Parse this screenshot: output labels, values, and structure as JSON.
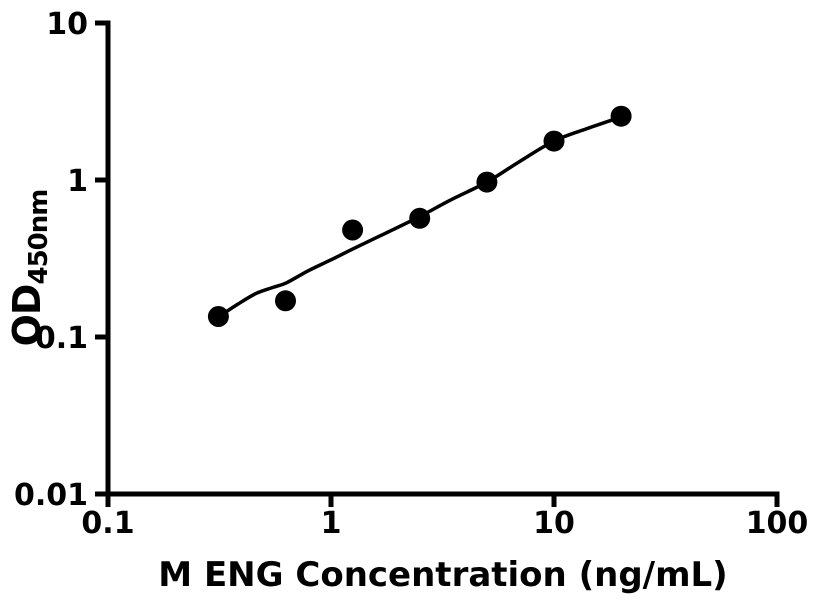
{
  "style": {
    "background": "#ffffff",
    "ink": "#000000"
  },
  "chart_data": {
    "type": "scatter",
    "title": "",
    "xlabel": "M ENG Concentration (ng/mL)",
    "ylabel_main": "OD",
    "ylabel_sub": "450nm",
    "x_scale": "log",
    "y_scale": "log",
    "xlim": [
      0.1,
      100
    ],
    "ylim": [
      0.01,
      10
    ],
    "grid": false,
    "legend": "none",
    "x_ticks": [
      {
        "value": 0.1,
        "label": "0.1"
      },
      {
        "value": 1,
        "label": "1"
      },
      {
        "value": 10,
        "label": "10"
      },
      {
        "value": 100,
        "label": "100"
      }
    ],
    "y_ticks": [
      {
        "value": 0.01,
        "label": "0.01"
      },
      {
        "value": 0.1,
        "label": "0.1"
      },
      {
        "value": 1,
        "label": "1"
      },
      {
        "value": 10,
        "label": "10"
      }
    ],
    "series": [
      {
        "name": "fit-curve",
        "type": "line",
        "color": "#000000",
        "points": [
          [
            0.3125,
            0.134
          ],
          [
            0.38,
            0.161
          ],
          [
            0.46,
            0.189
          ],
          [
            0.55,
            0.207
          ],
          [
            0.63,
            0.221
          ],
          [
            0.79,
            0.264
          ],
          [
            1.0,
            0.31
          ],
          [
            1.25,
            0.363
          ],
          [
            1.75,
            0.457
          ],
          [
            2.5,
            0.585
          ],
          [
            3.4,
            0.74
          ],
          [
            5.0,
            0.97
          ],
          [
            7.0,
            1.31
          ],
          [
            10,
            1.77
          ],
          [
            14,
            2.12
          ],
          [
            20,
            2.52
          ]
        ]
      },
      {
        "name": "standards",
        "type": "scatter",
        "marker": "circle",
        "color": "#000000",
        "points": [
          [
            0.3125,
            0.135
          ],
          [
            0.625,
            0.17
          ],
          [
            1.25,
            0.48
          ],
          [
            2.5,
            0.57
          ],
          [
            5,
            0.97
          ],
          [
            10,
            1.77
          ],
          [
            20,
            2.55
          ]
        ]
      }
    ]
  }
}
